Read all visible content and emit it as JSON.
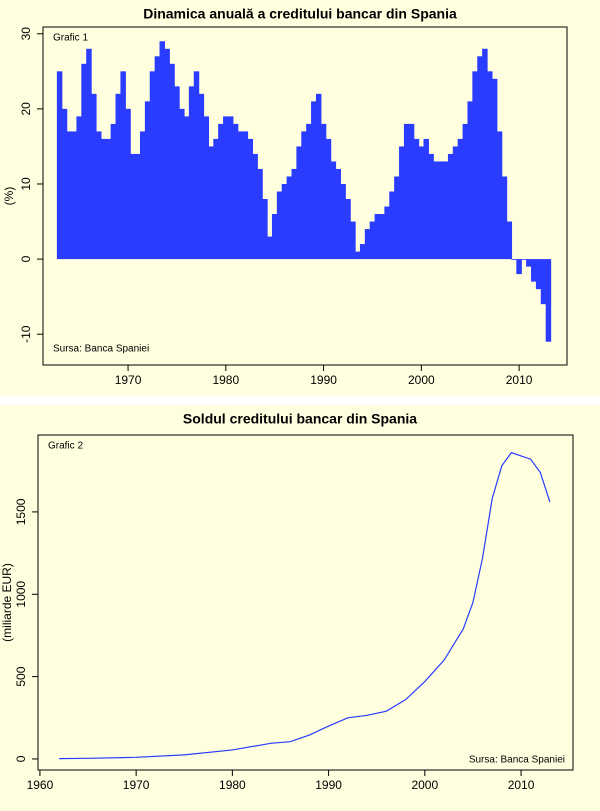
{
  "chart_data": [
    {
      "type": "bar",
      "title": "Dinamica anuală a creditului bancar din Spania",
      "annotations": [
        "Grafic 1",
        "Sursa: Banca Spaniei"
      ],
      "y_label": "(%)",
      "color": "#2a3cff",
      "x": [
        1963,
        1963.5,
        1964,
        1964.5,
        1965,
        1965.5,
        1966,
        1966.5,
        1967,
        1967.5,
        1968,
        1968.5,
        1969,
        1969.5,
        1970,
        1970.5,
        1971,
        1971.5,
        1972,
        1972.5,
        1973,
        1973.5,
        1974,
        1974.5,
        1975,
        1975.5,
        1976,
        1976.5,
        1977,
        1977.5,
        1978,
        1978.5,
        1979,
        1979.5,
        1980,
        1980.5,
        1981,
        1981.5,
        1982,
        1982.5,
        1983,
        1983.5,
        1984,
        1984.5,
        1985,
        1985.5,
        1986,
        1986.5,
        1987,
        1987.5,
        1988,
        1988.5,
        1989,
        1989.5,
        1990,
        1990.5,
        1991,
        1991.5,
        1992,
        1992.5,
        1993,
        1993.5,
        1994,
        1994.5,
        1995,
        1995.5,
        1996,
        1996.5,
        1997,
        1997.5,
        1998,
        1998.5,
        1999,
        1999.5,
        2000,
        2000.5,
        2001,
        2001.5,
        2002,
        2002.5,
        2003,
        2003.5,
        2004,
        2004.5,
        2005,
        2005.5,
        2006,
        2006.5,
        2007,
        2007.5,
        2008,
        2008.5,
        2009,
        2009.5,
        2010,
        2010.5,
        2011,
        2011.5,
        2012,
        2012.5,
        2013
      ],
      "values": [
        25,
        20,
        17,
        17,
        19,
        26,
        28,
        22,
        17,
        16,
        16,
        18,
        22,
        25,
        20,
        14,
        14,
        17,
        21,
        25,
        27,
        29,
        28,
        26,
        23,
        20,
        19,
        23,
        25,
        22,
        19,
        15,
        16,
        18,
        19,
        19,
        18,
        17,
        17,
        16,
        14,
        12,
        8,
        3,
        6,
        9,
        10,
        11,
        12,
        15,
        17,
        18,
        21,
        22,
        18,
        16,
        13,
        12,
        10,
        8,
        5,
        1,
        2,
        4,
        5,
        6,
        6,
        7,
        9,
        11,
        15,
        18,
        18,
        16,
        15,
        16,
        14,
        13,
        13,
        13,
        14,
        15,
        16,
        18,
        21,
        25,
        27,
        28,
        25,
        24,
        17,
        11,
        5,
        0,
        -2,
        0,
        -1,
        -3,
        -4,
        -6,
        -11
      ],
      "xlim": [
        1961.3,
        2014.9
      ],
      "xticks": [
        1970,
        1980,
        1990,
        2000,
        2010
      ],
      "ylim": [
        -14.1,
        30.9
      ],
      "yticks": [
        -10,
        0,
        10,
        20,
        30
      ]
    },
    {
      "type": "line",
      "title": "Soldul creditului bancar din Spania",
      "annotations": [
        "Grafic 2",
        "Sursa: Banca Spaniei"
      ],
      "y_label": "(miliarde EUR)",
      "color": "#2a3cff",
      "x": [
        1962,
        1965,
        1970,
        1975,
        1980,
        1984,
        1986,
        1988,
        1990,
        1992,
        1994,
        1996,
        1998,
        2000,
        2002,
        2004,
        2005,
        2006,
        2007,
        2008,
        2009,
        2010,
        2011,
        2012,
        2013
      ],
      "values": [
        2,
        4,
        10,
        25,
        55,
        95,
        105,
        145,
        200,
        250,
        265,
        290,
        360,
        470,
        600,
        790,
        950,
        1220,
        1580,
        1780,
        1860,
        1840,
        1820,
        1740,
        1560
      ],
      "xlim": [
        1959.8,
        2015.4
      ],
      "xticks": [
        1960,
        1970,
        1980,
        1990,
        2000,
        2010
      ],
      "ylim": [
        -67,
        1967
      ],
      "yticks": [
        0,
        500,
        1000,
        1500
      ]
    }
  ]
}
